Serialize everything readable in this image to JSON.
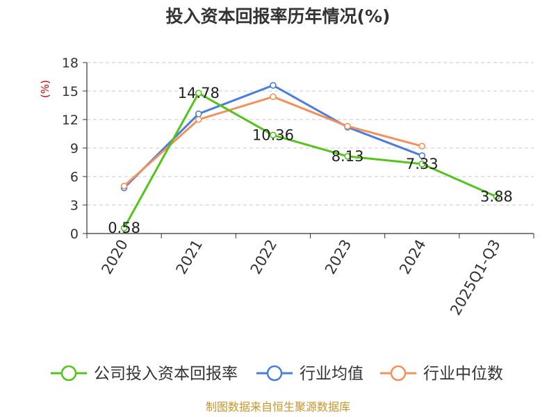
{
  "chart_data": {
    "type": "line",
    "title": "投入资本回报率历年情况(%)",
    "ylabel": "(%)",
    "xlabel": "",
    "categories": [
      "2020",
      "2021",
      "2022",
      "2023",
      "2024",
      "2025Q1-Q3"
    ],
    "ylim": [
      0,
      18
    ],
    "yticks": [
      0,
      3,
      6,
      9,
      12,
      15,
      18
    ],
    "grid": true,
    "legend_position": "bottom",
    "series": [
      {
        "name": "公司投入资本回报率",
        "color": "#52c41a",
        "values": [
          0.58,
          14.78,
          10.36,
          8.13,
          7.33,
          3.88
        ],
        "labels": [
          "0.58",
          "14.78",
          "10.36",
          "8.13",
          "7.33",
          "3.88"
        ]
      },
      {
        "name": "行业均值",
        "color": "#4a7de0",
        "values": [
          4.8,
          12.6,
          15.6,
          11.2,
          8.2,
          null
        ]
      },
      {
        "name": "行业中位数",
        "color": "#f5905a",
        "values": [
          5.0,
          12.0,
          14.4,
          11.3,
          9.2,
          null
        ]
      }
    ],
    "source": "制图数据来自恒生聚源数据库",
    "source_color": "#c8962a",
    "ylabel_color": "#cc0000"
  }
}
